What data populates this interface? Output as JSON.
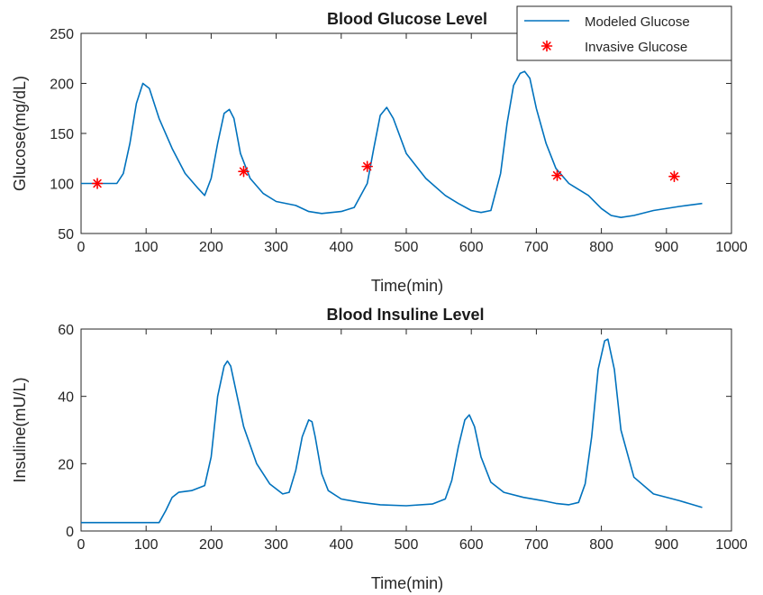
{
  "chart_data": [
    {
      "type": "line",
      "title": "Blood Glucose Level",
      "xlabel": "Time(min)",
      "ylabel": "Glucose(mg/dL)",
      "xlim": [
        0,
        1000
      ],
      "ylim": [
        50,
        250
      ],
      "xticks": [
        0,
        100,
        200,
        300,
        400,
        500,
        600,
        700,
        800,
        900,
        1000
      ],
      "yticks": [
        50,
        100,
        150,
        200,
        250
      ],
      "grid": false,
      "legend": "top-right",
      "series": [
        {
          "name": "Modeled Glucose",
          "style": "line",
          "color": "#0072BD",
          "x": [
            0,
            30,
            55,
            65,
            75,
            85,
            95,
            105,
            120,
            140,
            160,
            180,
            190,
            200,
            210,
            220,
            228,
            235,
            245,
            260,
            280,
            300,
            330,
            350,
            370,
            400,
            420,
            440,
            450,
            460,
            470,
            480,
            500,
            530,
            560,
            580,
            600,
            615,
            630,
            645,
            655,
            665,
            675,
            682,
            690,
            700,
            715,
            730,
            750,
            780,
            800,
            815,
            830,
            850,
            880,
            920,
            955
          ],
          "y": [
            100,
            100,
            100,
            110,
            140,
            180,
            200,
            195,
            165,
            135,
            110,
            95,
            88,
            105,
            140,
            170,
            174,
            165,
            130,
            105,
            90,
            82,
            78,
            72,
            70,
            72,
            76,
            100,
            135,
            168,
            176,
            165,
            130,
            105,
            88,
            80,
            73,
            71,
            73,
            110,
            160,
            198,
            210,
            212,
            205,
            175,
            140,
            115,
            100,
            88,
            75,
            68,
            66,
            68,
            73,
            77,
            80
          ]
        },
        {
          "name": "Invasive Glucose",
          "style": "marker",
          "marker": "*",
          "color": "#FF0000",
          "x": [
            25,
            250,
            440,
            732,
            912
          ],
          "y": [
            100,
            112,
            117,
            108,
            107
          ]
        }
      ]
    },
    {
      "type": "line",
      "title": "Blood Insuline Level",
      "xlabel": "Time(min)",
      "ylabel": "Insuline(mU/L)",
      "xlim": [
        0,
        1000
      ],
      "ylim": [
        0,
        60
      ],
      "xticks": [
        0,
        100,
        200,
        300,
        400,
        500,
        600,
        700,
        800,
        900,
        1000
      ],
      "yticks": [
        0,
        20,
        40,
        60
      ],
      "grid": false,
      "series": [
        {
          "name": "",
          "style": "line",
          "color": "#0072BD",
          "x": [
            0,
            60,
            100,
            120,
            130,
            140,
            150,
            170,
            190,
            200,
            210,
            220,
            225,
            230,
            240,
            250,
            270,
            290,
            310,
            320,
            330,
            340,
            350,
            355,
            360,
            370,
            380,
            400,
            430,
            460,
            500,
            540,
            560,
            570,
            580,
            590,
            597,
            605,
            615,
            630,
            650,
            680,
            710,
            730,
            750,
            765,
            775,
            785,
            795,
            805,
            810,
            820,
            830,
            850,
            880,
            920,
            955
          ],
          "y": [
            2.5,
            2.5,
            2.5,
            2.5,
            6,
            10,
            11.5,
            12,
            13.5,
            22,
            40,
            49,
            50.5,
            49,
            40,
            31,
            20,
            14,
            11,
            11.5,
            18,
            28,
            33,
            32.5,
            28,
            17,
            12,
            9.5,
            8.5,
            7.8,
            7.5,
            8,
            9.5,
            15,
            25,
            33,
            34.5,
            31,
            22,
            14.5,
            11.5,
            10,
            9,
            8.2,
            7.8,
            8.5,
            14,
            28,
            48,
            56.5,
            57,
            48,
            30,
            16,
            11,
            9,
            7
          ]
        }
      ]
    }
  ]
}
